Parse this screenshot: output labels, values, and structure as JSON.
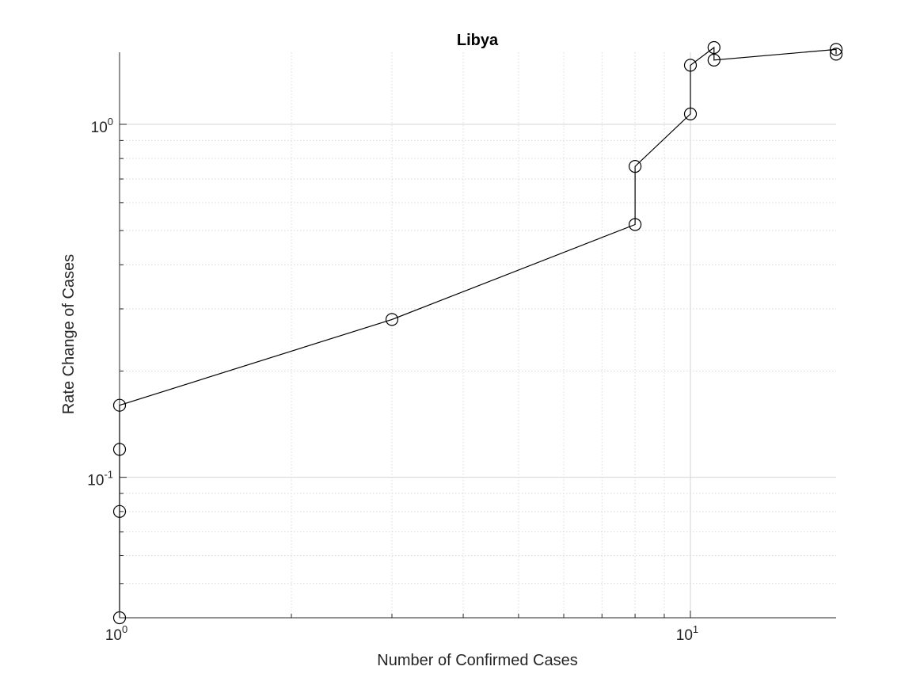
{
  "chart_data": {
    "type": "line",
    "title": "Libya",
    "xlabel": "Number of Confirmed Cases",
    "ylabel": "Rate Change of Cases",
    "xscale": "log",
    "yscale": "log",
    "xlim": [
      1,
      18
    ],
    "ylim": [
      0.04,
      1.6
    ],
    "grid": true,
    "minor_grid": true,
    "marker": "open-circle",
    "line_color": "#000000",
    "x_ticks": [
      {
        "value": 1,
        "base": "10",
        "exp": "0"
      },
      {
        "value": 10,
        "base": "10",
        "exp": "1"
      }
    ],
    "y_ticks": [
      {
        "value": 0.1,
        "base": "10",
        "exp": "-1"
      },
      {
        "value": 1,
        "base": "10",
        "exp": "0"
      }
    ],
    "series": [
      {
        "x": [
          1,
          1,
          1,
          1,
          3,
          8,
          8,
          10,
          10,
          11,
          11,
          18,
          18
        ],
        "y": [
          0.04,
          0.08,
          0.12,
          0.16,
          0.28,
          0.52,
          0.76,
          1.07,
          1.47,
          1.65,
          1.52,
          1.63,
          1.58
        ]
      }
    ]
  }
}
